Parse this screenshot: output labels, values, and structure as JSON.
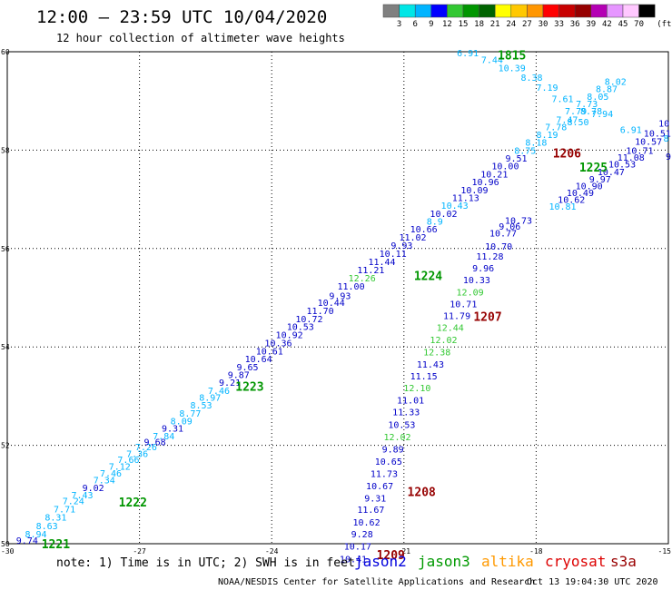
{
  "header": {
    "title": "12:00 – 23:59 UTC 10/04/2020",
    "subtitle": "12 hour collection of altimeter wave heights"
  },
  "legend": {
    "unit": "(ft)",
    "bins": [
      {
        "label": "3",
        "color": "#808080"
      },
      {
        "label": "6",
        "color": "#00e6e6"
      },
      {
        "label": "9",
        "color": "#00b4ff"
      },
      {
        "label": "12",
        "color": "#0000ff"
      },
      {
        "label": "15",
        "color": "#32c832"
      },
      {
        "label": "18",
        "color": "#009600"
      },
      {
        "label": "21",
        "color": "#006400"
      },
      {
        "label": "24",
        "color": "#ffff00"
      },
      {
        "label": "27",
        "color": "#ffc800"
      },
      {
        "label": "30",
        "color": "#ff9600"
      },
      {
        "label": "33",
        "color": "#ff0000"
      },
      {
        "label": "36",
        "color": "#c80000"
      },
      {
        "label": "39",
        "color": "#960000"
      },
      {
        "label": "42",
        "color": "#b400b4"
      },
      {
        "label": "45",
        "color": "#e696ff"
      },
      {
        "label": "70",
        "color": "#ffc8ff"
      },
      {
        "label": "",
        "color": "#000000"
      }
    ]
  },
  "footer": {
    "note": "note: 1) Time is in UTC; 2) SWH is in feet",
    "satellites": [
      {
        "name": "jason2",
        "color": "#0000dd"
      },
      {
        "name": "jason3",
        "color": "#009900"
      },
      {
        "name": "altika",
        "color": "#ff9900"
      },
      {
        "name": "cryosat",
        "color": "#dd0000"
      },
      {
        "name": "s3a",
        "color": "#990000"
      }
    ],
    "credit": "NOAA/NESDIS Center for Satellite Applications and Research",
    "timestamp": "Oct 13 19:04:30 UTC 2020"
  },
  "chart_data": {
    "type": "scatter",
    "xlim": [
      -30,
      -15
    ],
    "ylim": [
      50,
      60
    ],
    "xticks": [
      "-30",
      "-27",
      "-24",
      "-21",
      "-18",
      "-15"
    ],
    "yticks": [
      "50",
      "52",
      "54",
      "56",
      "58",
      "60"
    ],
    "grid": true,
    "colors": {
      "light": "#00b4ff",
      "medium": "#0000c8",
      "green": "#32c832"
    },
    "points": [
      {
        "x": -29.55,
        "y": 50.07,
        "v": "9.74",
        "c": "medium"
      },
      {
        "x": -29.35,
        "y": 50.2,
        "v": "8.94",
        "c": "light"
      },
      {
        "x": -29.1,
        "y": 50.37,
        "v": "8.63",
        "c": "light"
      },
      {
        "x": -28.9,
        "y": 50.54,
        "v": "8.31",
        "c": "light"
      },
      {
        "x": -28.7,
        "y": 50.71,
        "v": "7.71",
        "c": "light"
      },
      {
        "x": -28.5,
        "y": 50.88,
        "v": "7.24",
        "c": "light"
      },
      {
        "x": -28.3,
        "y": 51.0,
        "v": "7.43",
        "c": "light"
      },
      {
        "x": -28.05,
        "y": 51.14,
        "v": "9.02",
        "c": "medium"
      },
      {
        "x": -27.8,
        "y": 51.3,
        "v": "7.34",
        "c": "light"
      },
      {
        "x": -27.65,
        "y": 51.44,
        "v": "7.46",
        "c": "light"
      },
      {
        "x": -27.45,
        "y": 51.58,
        "v": "7.12",
        "c": "light"
      },
      {
        "x": -27.25,
        "y": 51.72,
        "v": "7.66",
        "c": "light"
      },
      {
        "x": -27.05,
        "y": 51.84,
        "v": "7.36",
        "c": "light"
      },
      {
        "x": -26.85,
        "y": 51.97,
        "v": "7.26",
        "c": "light"
      },
      {
        "x": -26.65,
        "y": 52.08,
        "v": "9.68",
        "c": "medium"
      },
      {
        "x": -26.45,
        "y": 52.2,
        "v": "7.84",
        "c": "light"
      },
      {
        "x": -26.25,
        "y": 52.35,
        "v": "9.31",
        "c": "medium"
      },
      {
        "x": -26.05,
        "y": 52.5,
        "v": "8.09",
        "c": "light"
      },
      {
        "x": -25.85,
        "y": 52.66,
        "v": "8.77",
        "c": "light"
      },
      {
        "x": -25.6,
        "y": 52.82,
        "v": "8.53",
        "c": "light"
      },
      {
        "x": -25.4,
        "y": 52.98,
        "v": "8.97",
        "c": "light"
      },
      {
        "x": -25.2,
        "y": 53.12,
        "v": "7.46",
        "c": "light"
      },
      {
        "x": -24.95,
        "y": 53.28,
        "v": "9.21",
        "c": "medium"
      },
      {
        "x": -24.75,
        "y": 53.44,
        "v": "9.87",
        "c": "medium"
      },
      {
        "x": -24.55,
        "y": 53.6,
        "v": "9.65",
        "c": "medium"
      },
      {
        "x": -24.3,
        "y": 53.76,
        "v": "10.64",
        "c": "medium"
      },
      {
        "x": -24.05,
        "y": 53.92,
        "v": "10.61",
        "c": "medium"
      },
      {
        "x": -23.85,
        "y": 54.09,
        "v": "10.36",
        "c": "medium"
      },
      {
        "x": -23.6,
        "y": 54.25,
        "v": "10.92",
        "c": "medium"
      },
      {
        "x": -23.35,
        "y": 54.42,
        "v": "10.53",
        "c": "medium"
      },
      {
        "x": -23.15,
        "y": 54.58,
        "v": "10.72",
        "c": "medium"
      },
      {
        "x": -22.9,
        "y": 54.74,
        "v": "11.70",
        "c": "medium"
      },
      {
        "x": -22.65,
        "y": 54.91,
        "v": "10.44",
        "c": "medium"
      },
      {
        "x": -22.45,
        "y": 55.05,
        "v": "9.93",
        "c": "medium"
      },
      {
        "x": -22.2,
        "y": 55.24,
        "v": "11.00",
        "c": "medium"
      },
      {
        "x": -21.95,
        "y": 55.41,
        "v": "12.26",
        "c": "green"
      },
      {
        "x": -21.75,
        "y": 55.57,
        "v": "11.21",
        "c": "medium"
      },
      {
        "x": -21.5,
        "y": 55.74,
        "v": "11.44",
        "c": "medium"
      },
      {
        "x": -21.25,
        "y": 55.9,
        "v": "10.11",
        "c": "medium"
      },
      {
        "x": -21.05,
        "y": 56.07,
        "v": "9.93",
        "c": "medium"
      },
      {
        "x": -20.8,
        "y": 56.24,
        "v": "11.02",
        "c": "medium"
      },
      {
        "x": -20.55,
        "y": 56.4,
        "v": "10.66",
        "c": "medium"
      },
      {
        "x": -20.3,
        "y": 56.56,
        "v": "8.9",
        "c": "light"
      },
      {
        "x": -20.1,
        "y": 56.72,
        "v": "10.02",
        "c": "medium"
      },
      {
        "x": -19.85,
        "y": 56.88,
        "v": "10.43",
        "c": "light"
      },
      {
        "x": -19.6,
        "y": 57.04,
        "v": "11.13",
        "c": "medium"
      },
      {
        "x": -19.4,
        "y": 57.2,
        "v": "10.09",
        "c": "medium"
      },
      {
        "x": -19.15,
        "y": 57.36,
        "v": "10.96",
        "c": "medium"
      },
      {
        "x": -18.95,
        "y": 57.52,
        "v": "10.21",
        "c": "medium"
      },
      {
        "x": -18.7,
        "y": 57.68,
        "v": "10.00",
        "c": "medium"
      },
      {
        "x": -18.45,
        "y": 57.84,
        "v": "9.51",
        "c": "medium"
      },
      {
        "x": -18.25,
        "y": 58.0,
        "v": "8.75",
        "c": "light"
      },
      {
        "x": -18.0,
        "y": 58.16,
        "v": "8.18",
        "c": "light"
      },
      {
        "x": -17.75,
        "y": 58.32,
        "v": "8.19",
        "c": "light"
      },
      {
        "x": -17.55,
        "y": 58.48,
        "v": "7.78",
        "c": "light"
      },
      {
        "x": -17.3,
        "y": 58.63,
        "v": "7.47",
        "c": "light"
      },
      {
        "x": -17.1,
        "y": 58.8,
        "v": "7.79",
        "c": "light"
      },
      {
        "x": -16.85,
        "y": 58.95,
        "v": "7.73",
        "c": "light"
      },
      {
        "x": -16.6,
        "y": 59.1,
        "v": "8.05",
        "c": "light"
      },
      {
        "x": -16.4,
        "y": 59.25,
        "v": "8.87",
        "c": "light"
      },
      {
        "x": -16.2,
        "y": 59.4,
        "v": "8.02",
        "c": "light"
      },
      {
        "x": -18.4,
        "y": 56.58,
        "v": "10.73",
        "c": "medium"
      },
      {
        "x": -18.6,
        "y": 56.46,
        "v": "9.06",
        "c": "medium"
      },
      {
        "x": -18.75,
        "y": 56.32,
        "v": "10.77",
        "c": "medium"
      },
      {
        "x": -18.85,
        "y": 56.05,
        "v": "10.70",
        "c": "medium"
      },
      {
        "x": -19.05,
        "y": 55.85,
        "v": "11.28",
        "c": "medium"
      },
      {
        "x": -19.2,
        "y": 55.61,
        "v": "9.96",
        "c": "medium"
      },
      {
        "x": -19.35,
        "y": 55.37,
        "v": "10.33",
        "c": "medium"
      },
      {
        "x": -19.5,
        "y": 55.12,
        "v": "12.09",
        "c": "green"
      },
      {
        "x": -19.65,
        "y": 54.88,
        "v": "10.71",
        "c": "medium"
      },
      {
        "x": -19.8,
        "y": 54.64,
        "v": "11.79",
        "c": "medium"
      },
      {
        "x": -19.95,
        "y": 54.4,
        "v": "12.44",
        "c": "green"
      },
      {
        "x": -20.1,
        "y": 54.15,
        "v": "12.02",
        "c": "green"
      },
      {
        "x": -20.25,
        "y": 53.9,
        "v": "12.38",
        "c": "green"
      },
      {
        "x": -20.4,
        "y": 53.65,
        "v": "11.43",
        "c": "medium"
      },
      {
        "x": -20.55,
        "y": 53.41,
        "v": "11.15",
        "c": "medium"
      },
      {
        "x": -20.7,
        "y": 53.17,
        "v": "12.10",
        "c": "green"
      },
      {
        "x": -20.85,
        "y": 52.92,
        "v": "11.01",
        "c": "medium"
      },
      {
        "x": -20.95,
        "y": 52.68,
        "v": "11.33",
        "c": "medium"
      },
      {
        "x": -21.05,
        "y": 52.43,
        "v": "10.53",
        "c": "medium"
      },
      {
        "x": -21.15,
        "y": 52.18,
        "v": "12.02",
        "c": "green"
      },
      {
        "x": -21.25,
        "y": 51.93,
        "v": "9.89",
        "c": "medium"
      },
      {
        "x": -21.35,
        "y": 51.68,
        "v": "10.65",
        "c": "medium"
      },
      {
        "x": -21.45,
        "y": 51.43,
        "v": "11.73",
        "c": "medium"
      },
      {
        "x": -21.55,
        "y": 51.18,
        "v": "10.67",
        "c": "medium"
      },
      {
        "x": -21.65,
        "y": 50.93,
        "v": "9.31",
        "c": "medium"
      },
      {
        "x": -21.75,
        "y": 50.7,
        "v": "11.67",
        "c": "medium"
      },
      {
        "x": -21.85,
        "y": 50.44,
        "v": "10.62",
        "c": "medium"
      },
      {
        "x": -21.95,
        "y": 50.2,
        "v": "9.28",
        "c": "medium"
      },
      {
        "x": -22.05,
        "y": 49.95,
        "v": "10.17",
        "c": "medium"
      },
      {
        "x": -22.15,
        "y": 49.7,
        "v": "10.41",
        "c": "medium"
      },
      {
        "x": -15.1,
        "y": 58.55,
        "v": "10",
        "c": "medium"
      },
      {
        "x": -15.25,
        "y": 58.35,
        "v": "10.51",
        "c": "medium"
      },
      {
        "x": -15.45,
        "y": 58.18,
        "v": "10.57",
        "c": "medium"
      },
      {
        "x": -15.65,
        "y": 58.0,
        "v": "10.71",
        "c": "medium"
      },
      {
        "x": -15.85,
        "y": 57.86,
        "v": "11.08",
        "c": "medium"
      },
      {
        "x": -16.05,
        "y": 57.72,
        "v": "10.53",
        "c": "medium"
      },
      {
        "x": -16.3,
        "y": 57.56,
        "v": "10.47",
        "c": "medium"
      },
      {
        "x": -16.55,
        "y": 57.42,
        "v": "9.97",
        "c": "medium"
      },
      {
        "x": -16.8,
        "y": 57.28,
        "v": "10.90",
        "c": "medium"
      },
      {
        "x": -17.0,
        "y": 57.14,
        "v": "10.49",
        "c": "medium"
      },
      {
        "x": -17.2,
        "y": 57.0,
        "v": "10.62",
        "c": "medium"
      },
      {
        "x": -17.4,
        "y": 56.86,
        "v": "10.81",
        "c": "light"
      },
      {
        "x": -15.85,
        "y": 58.42,
        "v": "6.91",
        "c": "light"
      },
      {
        "x": -15.05,
        "y": 58.25,
        "v": "8",
        "c": "light"
      },
      {
        "x": -15.0,
        "y": 57.88,
        "v": "9",
        "c": "medium"
      },
      {
        "x": -16.5,
        "y": 58.75,
        "v": "7.94",
        "c": "light"
      },
      {
        "x": -17.05,
        "y": 58.58,
        "v": "8.50",
        "c": "light"
      },
      {
        "x": -17.4,
        "y": 59.05,
        "v": "7.61",
        "c": "light"
      },
      {
        "x": -17.75,
        "y": 59.28,
        "v": "7.19",
        "c": "light"
      },
      {
        "x": -18.1,
        "y": 59.48,
        "v": "8.38",
        "c": "light"
      },
      {
        "x": -18.55,
        "y": 59.68,
        "v": "10.39",
        "c": "light"
      },
      {
        "x": -19.0,
        "y": 59.84,
        "v": "7.44",
        "c": "light"
      },
      {
        "x": -19.55,
        "y": 59.98,
        "v": "6.91",
        "c": "light"
      },
      {
        "x": -16.75,
        "y": 58.8,
        "v": "8.78",
        "c": "light"
      }
    ],
    "time_labels": [
      {
        "x": -28.9,
        "y": 50.0,
        "t": "1221",
        "color": "#009600"
      },
      {
        "x": -27.15,
        "y": 50.85,
        "t": "1222",
        "color": "#009600"
      },
      {
        "x": -24.5,
        "y": 53.2,
        "t": "1223",
        "color": "#009600"
      },
      {
        "x": -20.45,
        "y": 55.45,
        "t": "1224",
        "color": "#009600"
      },
      {
        "x": -16.7,
        "y": 57.66,
        "t": "1225",
        "color": "#009600"
      },
      {
        "x": -18.55,
        "y": 59.94,
        "t": "1815",
        "color": "#009600"
      },
      {
        "x": -17.3,
        "y": 57.94,
        "t": "1206",
        "color": "#960000"
      },
      {
        "x": -19.1,
        "y": 54.62,
        "t": "1207",
        "color": "#960000"
      },
      {
        "x": -20.6,
        "y": 51.06,
        "t": "1208",
        "color": "#960000"
      },
      {
        "x": -21.3,
        "y": 49.78,
        "t": "1209",
        "color": "#960000"
      }
    ]
  }
}
